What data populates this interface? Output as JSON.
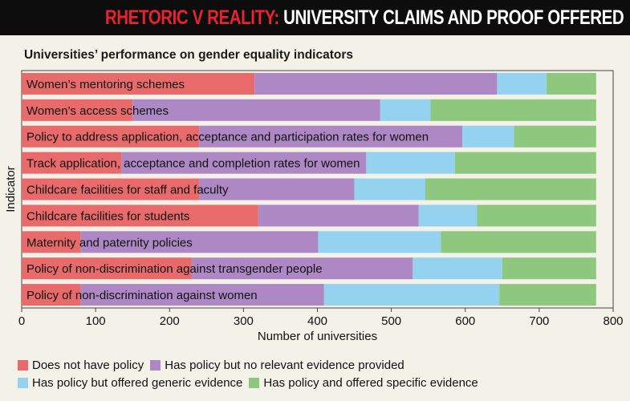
{
  "header": {
    "title_highlight": "RHETORIC V REALITY:",
    "title_rest": " UNIVERSITY CLAIMS AND PROOF OFFERED"
  },
  "colors": {
    "none": "#e86a6a",
    "no_evidence": "#ad88c4",
    "generic": "#94d2f0",
    "specific": "#8ec77e",
    "banner_highlight": "#e8232f"
  },
  "chart_data": {
    "type": "bar",
    "orientation": "horizontal",
    "stacked": true,
    "title": "Universities’ performance on gender equality indicators",
    "xlabel": "Number of universities",
    "ylabel": "Indicator",
    "xlim": [
      0,
      800
    ],
    "xticks": [
      0,
      100,
      200,
      300,
      400,
      500,
      600,
      700,
      800
    ],
    "grid": false,
    "legend_position": "bottom",
    "categories": [
      "Women’s mentoring schemes",
      "Women’s access schemes",
      "Policy to address application, acceptance and participation rates for women",
      "Track application, acceptance and completion rates for women",
      "Childcare facilities for staff and faculty",
      "Childcare facilities for students",
      "Maternity and paternity policies",
      "Policy of non-discrimination against transgender people",
      "Policy of non-discrimination against women"
    ],
    "series": [
      {
        "name": "Does not have policy",
        "color_key": "none",
        "values": [
          315,
          150,
          240,
          135,
          240,
          320,
          80,
          230,
          80
        ]
      },
      {
        "name": "Has policy but no relevant evidence provided",
        "color_key": "no_evidence",
        "values": [
          328,
          335,
          356,
          331,
          210,
          217,
          321,
          299,
          329
        ]
      },
      {
        "name": "Has policy but offered generic evidence",
        "color_key": "generic",
        "values": [
          67,
          68,
          70,
          120,
          96,
          79,
          166,
          121,
          237
        ]
      },
      {
        "name": "Has policy and offered specific evidence",
        "color_key": "specific",
        "values": [
          67,
          224,
          111,
          191,
          231,
          161,
          210,
          127,
          131
        ]
      }
    ]
  }
}
